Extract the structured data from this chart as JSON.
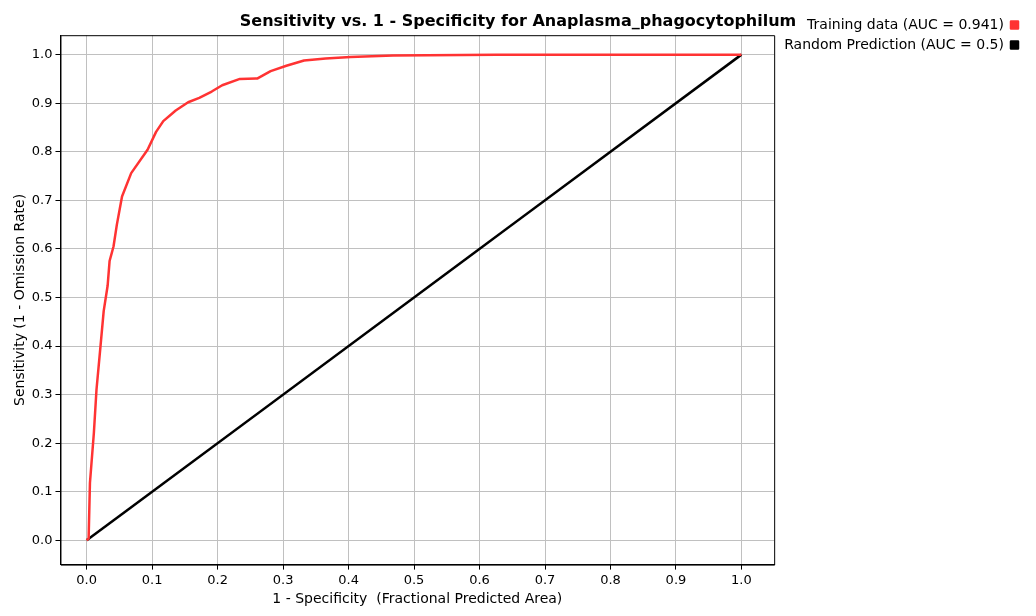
{
  "chart_data": {
    "type": "line",
    "title": "Sensitivity vs. 1 - Specificity for Anaplasma_phagocytophilum",
    "xlabel": "1 - Specificity  (Fractional Predicted Area)",
    "ylabel": "Sensitivity (1 - Omission Rate)",
    "xlim": [
      -0.04,
      1.05
    ],
    "ylim": [
      -0.05,
      1.04
    ],
    "xticks": [
      {
        "value": 0,
        "label": "0.0"
      },
      {
        "value": 0.1,
        "label": "0.1"
      },
      {
        "value": 0.2,
        "label": "0.2"
      },
      {
        "value": 0.3,
        "label": "0.3"
      },
      {
        "value": 0.4,
        "label": "0.4"
      },
      {
        "value": 0.5,
        "label": "0.5"
      },
      {
        "value": 0.6,
        "label": "0.6"
      },
      {
        "value": 0.7,
        "label": "0.7"
      },
      {
        "value": 0.8,
        "label": "0.8"
      },
      {
        "value": 0.9,
        "label": "0.9"
      },
      {
        "value": 1,
        "label": "1.0"
      }
    ],
    "yticks": [
      {
        "value": 0,
        "label": "0.0"
      },
      {
        "value": 0.1,
        "label": "0.1"
      },
      {
        "value": 0.2,
        "label": "0.2"
      },
      {
        "value": 0.3,
        "label": "0.3"
      },
      {
        "value": 0.4,
        "label": "0.4"
      },
      {
        "value": 0.5,
        "label": "0.5"
      },
      {
        "value": 0.6,
        "label": "0.6"
      },
      {
        "value": 0.7,
        "label": "0.7"
      },
      {
        "value": 0.8,
        "label": "0.8"
      },
      {
        "value": 0.9,
        "label": "0.9"
      },
      {
        "value": 1,
        "label": "1.0"
      }
    ],
    "grid": true,
    "legend": "top right",
    "marker": "none",
    "line_style": "solid",
    "series": [
      {
        "name": "Training data (AUC = 0.941)",
        "color": "#ff3333",
        "x": [
          0,
          0.003,
          0.005,
          0.011,
          0.015,
          0.021,
          0.026,
          0.032,
          0.035,
          0.041,
          0.046,
          0.054,
          0.068,
          0.093,
          0.106,
          0.117,
          0.136,
          0.155,
          0.172,
          0.191,
          0.207,
          0.234,
          0.261,
          0.281,
          0.305,
          0.332,
          0.365,
          0.403,
          0.468,
          0.626,
          1
        ],
        "values": [
          0,
          0.004,
          0.118,
          0.221,
          0.31,
          0.398,
          0.472,
          0.524,
          0.575,
          0.605,
          0.649,
          0.708,
          0.756,
          0.804,
          0.841,
          0.863,
          0.885,
          0.902,
          0.911,
          0.924,
          0.937,
          0.95,
          0.951,
          0.966,
          0.977,
          0.988,
          0.992,
          0.995,
          0.998,
          1,
          1
        ]
      },
      {
        "name": "Random Prediction (AUC = 0.5)",
        "color": "#000000",
        "x": [
          0,
          1
        ],
        "values": [
          0,
          1
        ]
      }
    ]
  }
}
